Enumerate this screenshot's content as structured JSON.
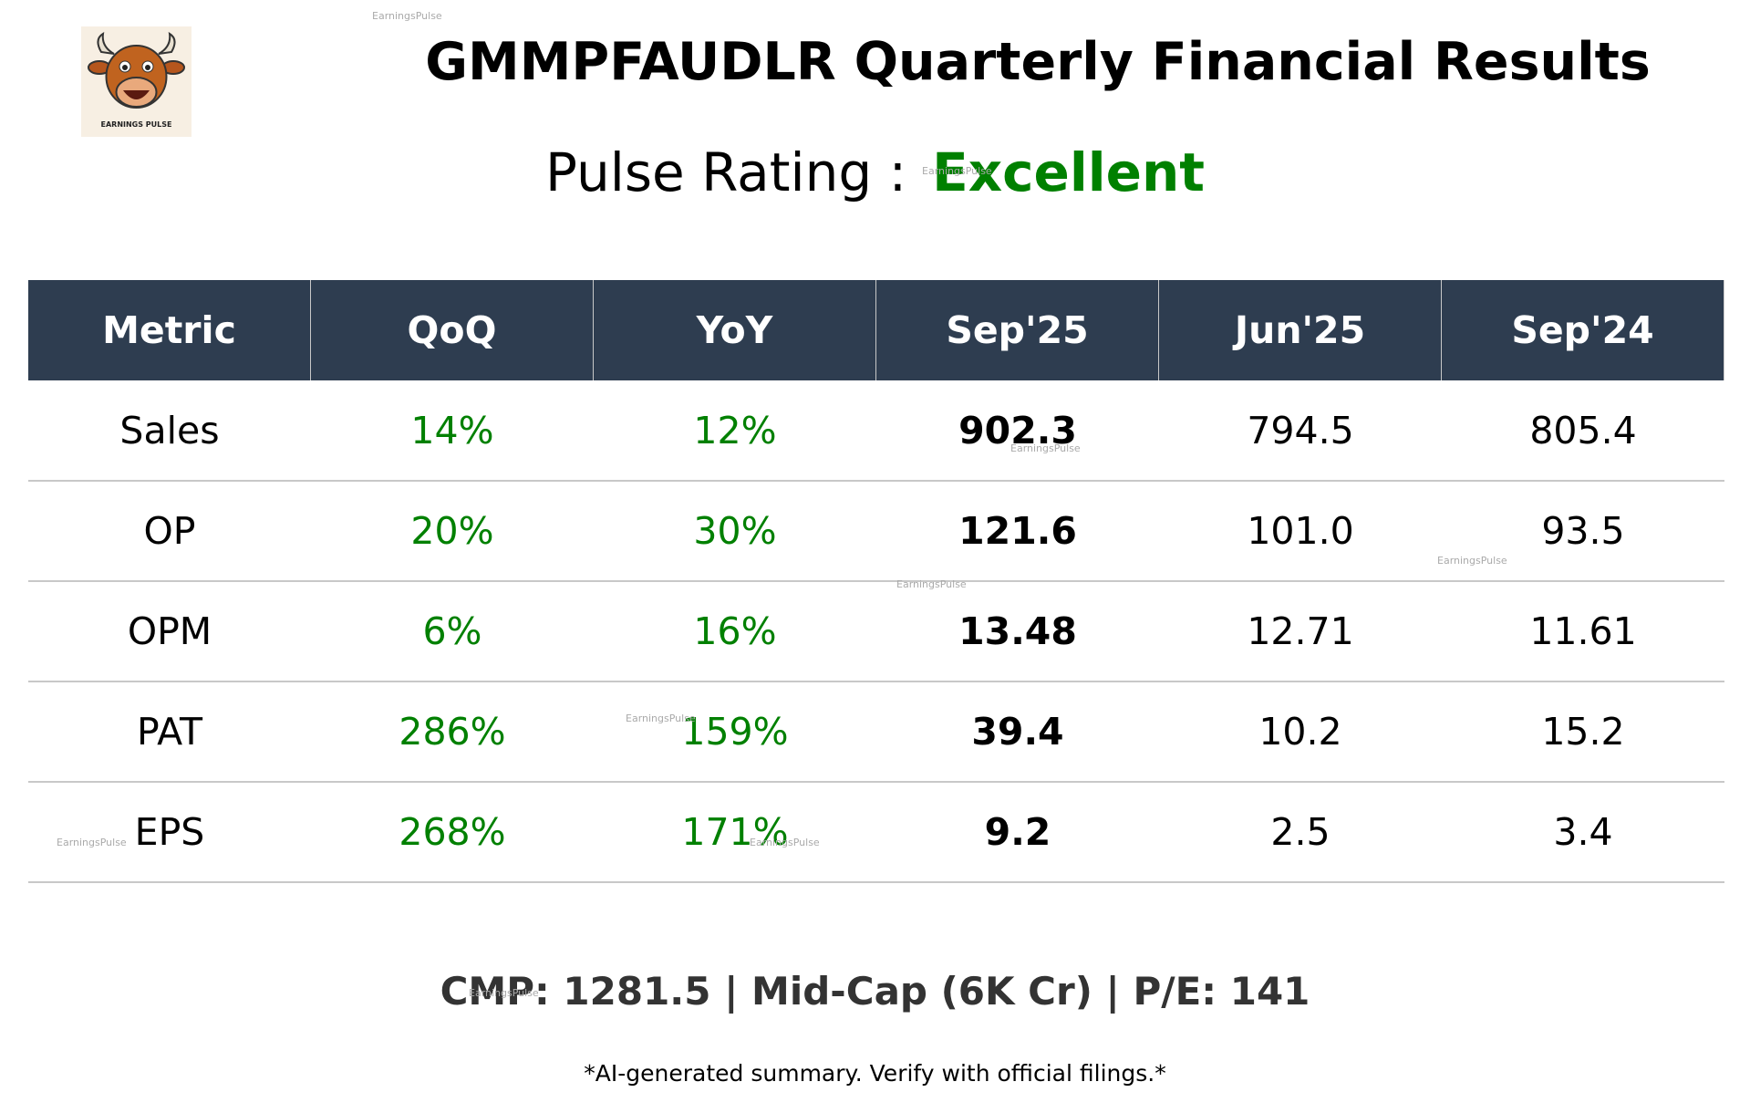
{
  "logo": {
    "label": "EARNINGS PULSE"
  },
  "header": {
    "title": "GMMPFAUDLR Quarterly Financial Results",
    "rating_label": "Pulse Rating :",
    "rating": "Excellent"
  },
  "table": {
    "columns": [
      "Metric",
      "QoQ",
      "YoY",
      "Sep'25",
      "Jun'25",
      "Sep'24"
    ],
    "rows": [
      [
        "Sales",
        "14%",
        "12%",
        "902.3",
        "794.5",
        "805.4"
      ],
      [
        "OP",
        "20%",
        "30%",
        "121.6",
        "101.0",
        "93.5"
      ],
      [
        "OPM",
        "6%",
        "16%",
        "13.48",
        "12.71",
        "11.61"
      ],
      [
        "PAT",
        "286%",
        "159%",
        "39.4",
        "10.2",
        "15.2"
      ],
      [
        "EPS",
        "268%",
        "171%",
        "9.2",
        "2.5",
        "3.4"
      ]
    ]
  },
  "footer": {
    "summary": "CMP: 1281.5 | Mid-Cap (6K Cr) | P/E: 141",
    "disclaimer": "*AI-generated summary. Verify with official filings.*"
  },
  "watermark": "EarningsPulse"
}
